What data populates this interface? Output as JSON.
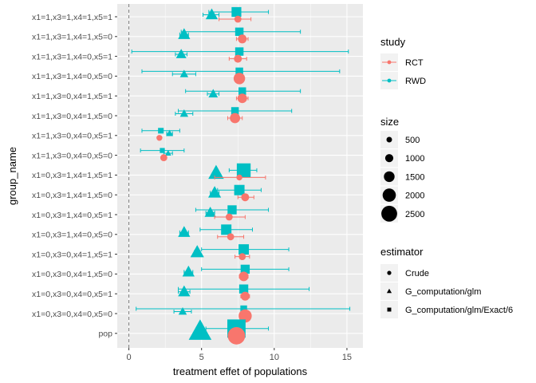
{
  "chart_data": {
    "type": "scatter",
    "xlabel": "treatment effet of populations",
    "ylabel": "group_name",
    "xlim": [
      -0.8,
      16.1
    ],
    "x_ticks": [
      0,
      5,
      10,
      15
    ],
    "reference_line_x": 0,
    "grid": true,
    "legend_placement": "right",
    "categories": [
      "x1=1,x3=1,x4=1,x5=1",
      "x1=1,x3=1,x4=1,x5=0",
      "x1=1,x3=1,x4=0,x5=1",
      "x1=1,x3=1,x4=0,x5=0",
      "x1=1,x3=0,x4=1,x5=1",
      "x1=1,x3=0,x4=1,x5=0",
      "x1=1,x3=0,x4=0,x5=1",
      "x1=1,x3=0,x4=0,x5=0",
      "x1=0,x3=1,x4=1,x5=1",
      "x1=0,x3=1,x4=1,x5=0",
      "x1=0,x3=1,x4=0,x5=1",
      "x1=0,x3=1,x4=0,x5=0",
      "x1=0,x3=0,x4=1,x5=1",
      "x1=0,x3=0,x4=1,x5=0",
      "x1=0,x3=0,x4=0,x5=1",
      "x1=0,x3=0,x4=0,x5=0",
      "pop"
    ],
    "points": [
      {
        "group": 0,
        "study": "RWD",
        "estimator": "G_computation/glm/Exact/6",
        "x": 7.4,
        "lo": 5.5,
        "hi": 9.6,
        "size": 700
      },
      {
        "group": 0,
        "study": "RWD",
        "estimator": "G_computation/glm",
        "x": 5.7,
        "lo": 5.1,
        "hi": 6.2,
        "size": 700
      },
      {
        "group": 0,
        "study": "RCT",
        "estimator": "Crude",
        "x": 7.5,
        "lo": 6.2,
        "hi": 8.4,
        "size": 300
      },
      {
        "group": 1,
        "study": "RWD",
        "estimator": "G_computation/glm/Exact/6",
        "x": 7.6,
        "lo": 3.6,
        "hi": 11.8,
        "size": 500
      },
      {
        "group": 1,
        "study": "RWD",
        "estimator": "G_computation/glm",
        "x": 3.8,
        "lo": 3.5,
        "hi": 4.1,
        "size": 700
      },
      {
        "group": 1,
        "study": "RCT",
        "estimator": "Crude",
        "x": 7.8,
        "lo": 7.4,
        "hi": 8.2,
        "size": 500
      },
      {
        "group": 2,
        "study": "RWD",
        "estimator": "G_computation/glm/Exact/6",
        "x": 7.6,
        "lo": 0.2,
        "hi": 15.1,
        "size": 500
      },
      {
        "group": 2,
        "study": "RWD",
        "estimator": "G_computation/glm",
        "x": 3.6,
        "lo": 3.2,
        "hi": 4.0,
        "size": 500
      },
      {
        "group": 2,
        "study": "RCT",
        "estimator": "Crude",
        "x": 7.5,
        "lo": 6.9,
        "hi": 8.1,
        "size": 400
      },
      {
        "group": 3,
        "study": "RWD",
        "estimator": "G_computation/glm/Exact/6",
        "x": 7.6,
        "lo": 0.9,
        "hi": 14.5,
        "size": 400
      },
      {
        "group": 3,
        "study": "RWD",
        "estimator": "G_computation/glm",
        "x": 3.8,
        "lo": 3.0,
        "hi": 4.6,
        "size": 300
      },
      {
        "group": 3,
        "study": "RCT",
        "estimator": "Crude",
        "x": 7.6,
        "lo": 7.3,
        "hi": 7.9,
        "size": 900
      },
      {
        "group": 4,
        "study": "RWD",
        "estimator": "G_computation/glm/Exact/6",
        "x": 7.8,
        "lo": 3.9,
        "hi": 11.8,
        "size": 400
      },
      {
        "group": 4,
        "study": "RWD",
        "estimator": "G_computation/glm",
        "x": 5.8,
        "lo": 5.4,
        "hi": 6.2,
        "size": 400
      },
      {
        "group": 4,
        "study": "RCT",
        "estimator": "Crude",
        "x": 7.8,
        "lo": 7.4,
        "hi": 8.2,
        "size": 600
      },
      {
        "group": 5,
        "study": "RWD",
        "estimator": "G_computation/glm/Exact/6",
        "x": 7.3,
        "lo": 3.4,
        "hi": 11.2,
        "size": 400
      },
      {
        "group": 5,
        "study": "RWD",
        "estimator": "G_computation/glm",
        "x": 3.8,
        "lo": 3.2,
        "hi": 4.4,
        "size": 300
      },
      {
        "group": 5,
        "study": "RCT",
        "estimator": "Crude",
        "x": 7.3,
        "lo": 6.8,
        "hi": 7.8,
        "size": 700
      },
      {
        "group": 6,
        "study": "RWD",
        "estimator": "G_computation/glm/Exact/6",
        "x": 2.2,
        "lo": 0.9,
        "hi": 3.5,
        "size": 200
      },
      {
        "group": 6,
        "study": "RWD",
        "estimator": "G_computation/glm",
        "x": 2.8,
        "lo": 2.6,
        "hi": 3.0,
        "size": 200
      },
      {
        "group": 6,
        "study": "RCT",
        "estimator": "Crude",
        "x": 2.1,
        "lo": 2.0,
        "hi": 2.2,
        "size": 200
      },
      {
        "group": 7,
        "study": "RWD",
        "estimator": "G_computation/glm/Exact/6",
        "x": 2.3,
        "lo": 0.8,
        "hi": 3.8,
        "size": 150
      },
      {
        "group": 7,
        "study": "RWD",
        "estimator": "G_computation/glm",
        "x": 2.7,
        "lo": 2.4,
        "hi": 3.0,
        "size": 150
      },
      {
        "group": 7,
        "study": "RCT",
        "estimator": "Crude",
        "x": 2.4,
        "lo": 2.3,
        "hi": 2.5,
        "size": 300
      },
      {
        "group": 8,
        "study": "RWD",
        "estimator": "G_computation/glm/Exact/6",
        "x": 7.9,
        "lo": 6.9,
        "hi": 8.8,
        "size": 1500
      },
      {
        "group": 8,
        "study": "RWD",
        "estimator": "G_computation/glm",
        "x": 6.0,
        "lo": 5.8,
        "hi": 6.2,
        "size": 1200
      },
      {
        "group": 8,
        "study": "RCT",
        "estimator": "Crude",
        "x": 7.6,
        "lo": 5.9,
        "hi": 9.4,
        "size": 200
      },
      {
        "group": 9,
        "study": "RWD",
        "estimator": "G_computation/glm/Exact/6",
        "x": 7.6,
        "lo": 6.1,
        "hi": 9.1,
        "size": 800
      },
      {
        "group": 9,
        "study": "RWD",
        "estimator": "G_computation/glm",
        "x": 5.9,
        "lo": 5.6,
        "hi": 6.2,
        "size": 800
      },
      {
        "group": 9,
        "study": "RCT",
        "estimator": "Crude",
        "x": 8.0,
        "lo": 7.5,
        "hi": 8.6,
        "size": 400
      },
      {
        "group": 10,
        "study": "RWD",
        "estimator": "G_computation/glm/Exact/6",
        "x": 7.1,
        "lo": 4.6,
        "hi": 9.6,
        "size": 600
      },
      {
        "group": 10,
        "study": "RWD",
        "estimator": "G_computation/glm",
        "x": 5.6,
        "lo": 5.3,
        "hi": 5.9,
        "size": 600
      },
      {
        "group": 10,
        "study": "RCT",
        "estimator": "Crude",
        "x": 6.9,
        "lo": 5.9,
        "hi": 8.0,
        "size": 300
      },
      {
        "group": 11,
        "study": "RWD",
        "estimator": "G_computation/glm/Exact/6",
        "x": 6.7,
        "lo": 4.9,
        "hi": 8.5,
        "size": 800
      },
      {
        "group": 11,
        "study": "RWD",
        "estimator": "G_computation/glm",
        "x": 3.8,
        "lo": 3.5,
        "hi": 4.1,
        "size": 700
      },
      {
        "group": 11,
        "study": "RCT",
        "estimator": "Crude",
        "x": 7.0,
        "lo": 6.1,
        "hi": 7.9,
        "size": 300
      },
      {
        "group": 12,
        "study": "RWD",
        "estimator": "G_computation/glm/Exact/6",
        "x": 7.9,
        "lo": 5.0,
        "hi": 11.0,
        "size": 800
      },
      {
        "group": 12,
        "study": "RWD",
        "estimator": "G_computation/glm",
        "x": 4.7,
        "lo": 4.5,
        "hi": 4.9,
        "size": 900
      },
      {
        "group": 12,
        "study": "RCT",
        "estimator": "Crude",
        "x": 7.8,
        "lo": 7.3,
        "hi": 8.3,
        "size": 300
      },
      {
        "group": 13,
        "study": "RWD",
        "estimator": "G_computation/glm/Exact/6",
        "x": 8.0,
        "lo": 5.0,
        "hi": 11.0,
        "size": 600
      },
      {
        "group": 13,
        "study": "RWD",
        "estimator": "G_computation/glm",
        "x": 4.1,
        "lo": 3.8,
        "hi": 4.4,
        "size": 700
      },
      {
        "group": 13,
        "study": "RCT",
        "estimator": "Crude",
        "x": 7.9,
        "lo": 7.6,
        "hi": 8.2,
        "size": 600
      },
      {
        "group": 14,
        "study": "RWD",
        "estimator": "G_computation/glm/Exact/6",
        "x": 7.9,
        "lo": 3.4,
        "hi": 12.4,
        "size": 600
      },
      {
        "group": 14,
        "study": "RWD",
        "estimator": "G_computation/glm",
        "x": 3.8,
        "lo": 3.4,
        "hi": 4.2,
        "size": 700
      },
      {
        "group": 14,
        "study": "RCT",
        "estimator": "Crude",
        "x": 8.0,
        "lo": 7.7,
        "hi": 8.3,
        "size": 500
      },
      {
        "group": 15,
        "study": "RWD",
        "estimator": "G_computation/glm/Exact/6",
        "x": 7.9,
        "lo": 0.5,
        "hi": 15.2,
        "size": 300
      },
      {
        "group": 15,
        "study": "RWD",
        "estimator": "G_computation/glm",
        "x": 3.7,
        "lo": 3.1,
        "hi": 4.3,
        "size": 300
      },
      {
        "group": 15,
        "study": "RCT",
        "estimator": "Crude",
        "x": 8.0,
        "lo": 7.8,
        "hi": 8.2,
        "size": 1200
      },
      {
        "group": 16,
        "study": "RWD",
        "estimator": "G_computation/glm/Exact/6",
        "x": 7.4,
        "lo": 5.3,
        "hi": 9.6,
        "size": 2700
      },
      {
        "group": 16,
        "study": "RWD",
        "estimator": "G_computation/glm",
        "x": 4.9,
        "lo": 4.9,
        "hi": 4.9,
        "size": 2700
      },
      {
        "group": 16,
        "study": "RCT",
        "estimator": "Crude",
        "x": 7.4,
        "lo": 7.4,
        "hi": 7.4,
        "size": 2200
      }
    ],
    "legend": {
      "study": {
        "title": "study",
        "items": [
          {
            "label": "RCT",
            "color": "#F8766D"
          },
          {
            "label": "RWD",
            "color": "#00BFC4"
          }
        ]
      },
      "size": {
        "title": "size",
        "items": [
          {
            "label": "500",
            "value": 500
          },
          {
            "label": "1000",
            "value": 1000
          },
          {
            "label": "1500",
            "value": 1500
          },
          {
            "label": "2000",
            "value": 2000
          },
          {
            "label": "2500",
            "value": 2500
          }
        ]
      },
      "estimator": {
        "title": "estimator",
        "items": [
          {
            "label": "Crude",
            "shape": "circle"
          },
          {
            "label": "G_computation/glm",
            "shape": "triangle"
          },
          {
            "label": "G_computation/glm/Exact/6",
            "shape": "square"
          }
        ]
      }
    },
    "colors": {
      "RCT": "#F8766D",
      "RWD": "#00BFC4",
      "panel": "#EBEBEB",
      "grid": "#FFFFFF"
    }
  }
}
